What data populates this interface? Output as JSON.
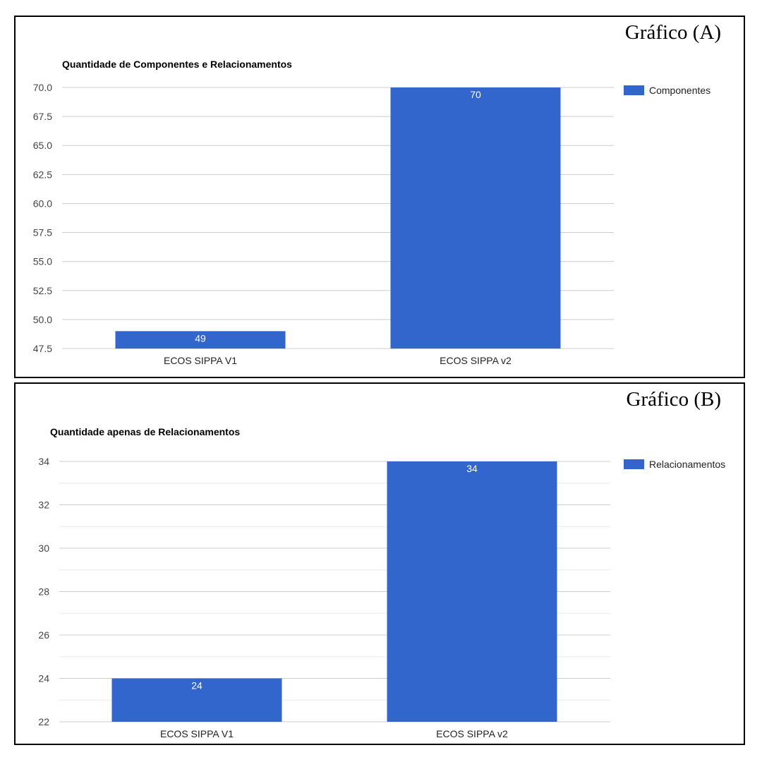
{
  "panels": [
    {
      "label": "Gráfico (A)",
      "chart_data": {
        "type": "bar",
        "title": "Quantidade de Componentes e Relacionamentos",
        "categories": [
          "ECOS SIPPA V1",
          "ECOS SIPPA v2"
        ],
        "series": [
          {
            "name": "Componentes",
            "values": [
              49,
              70
            ],
            "color": "#3366cc"
          }
        ],
        "data_labels": [
          "49",
          "70"
        ],
        "ylim": [
          47.5,
          70.0
        ],
        "yticks": [
          47.5,
          50.0,
          52.5,
          55.0,
          57.5,
          60.0,
          62.5,
          65.0,
          67.5,
          70.0
        ],
        "ytick_labels": [
          "47.5",
          "50.0",
          "52.5",
          "55.0",
          "57.5",
          "60.0",
          "62.5",
          "65.0",
          "67.5",
          "70.0"
        ],
        "minor_gridlines": false,
        "legend_position": "right",
        "grid": true
      }
    },
    {
      "label": "Gráfico (B)",
      "chart_data": {
        "type": "bar",
        "title": "Quantidade apenas de Relacionamentos",
        "categories": [
          "ECOS SIPPA V1",
          "ECOS SIPPA v2"
        ],
        "series": [
          {
            "name": "Relacionamentos",
            "values": [
              24,
              34
            ],
            "color": "#3366cc"
          }
        ],
        "data_labels": [
          "24",
          "34"
        ],
        "ylim": [
          22,
          34
        ],
        "yticks": [
          22,
          24,
          26,
          28,
          30,
          32,
          34
        ],
        "ytick_labels": [
          "22",
          "24",
          "26",
          "28",
          "30",
          "32",
          "34"
        ],
        "minor_gridlines": true,
        "legend_position": "right",
        "grid": true
      }
    }
  ]
}
